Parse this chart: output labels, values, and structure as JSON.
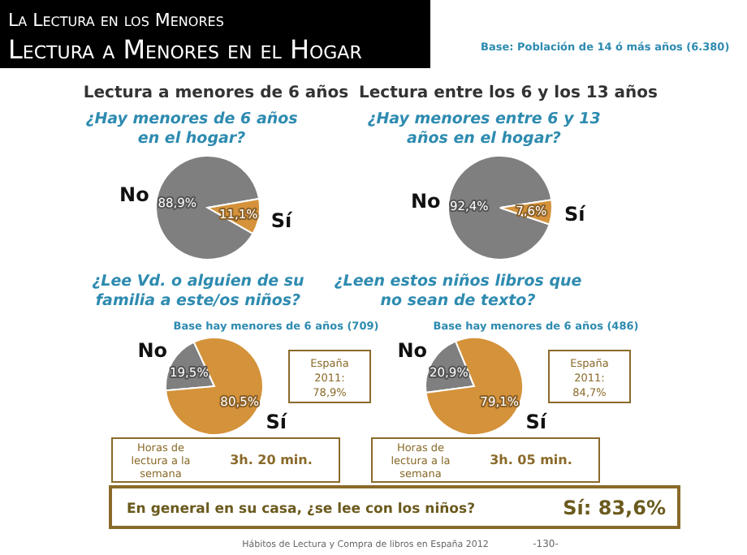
{
  "chart_data": [
    {
      "type": "other",
      "title": "La Lectura en los Menores",
      "subtitle": "Lectura a Menores en el Hogar",
      "annotations": [
        "Base:  Población de 14 ó más años (6.380)"
      ]
    },
    {
      "type": "pie",
      "subtitle": "Lectura a menores de 6 años",
      "title": "¿Hay menores de 6 años en el hogar?",
      "categories": [
        "No",
        "Sí"
      ],
      "values": [
        88.9,
        11.1
      ],
      "colors": [
        "#7f7f7f",
        "#d4923a"
      ],
      "value_labels": [
        "88,9%",
        "11,1%"
      ]
    },
    {
      "type": "pie",
      "title": "¿Lee Vd. o alguien de su familia a este/os niños?",
      "categories": [
        "No",
        "Sí"
      ],
      "values": [
        19.5,
        80.5
      ],
      "colors": [
        "#7f7f7f",
        "#d4923a"
      ],
      "value_labels": [
        "19,5%",
        "80,5%"
      ],
      "annotations": [
        "Base hay menores de 6 años (709)",
        "España 2011: 78,9%",
        "Horas de lectura a la semana",
        "3h.  20 min."
      ]
    },
    {
      "type": "pie",
      "subtitle": "Lectura entre los 6 y los 13 años",
      "title": "¿Hay menores entre  6  y 13 años en el hogar?",
      "categories": [
        "No",
        "Sí"
      ],
      "values": [
        92.4,
        7.6
      ],
      "colors": [
        "#7f7f7f",
        "#d4923a"
      ],
      "value_labels": [
        "92,4%",
        "7,6%"
      ]
    },
    {
      "type": "pie",
      "title": "¿Leen estos niños libros que no sean de texto?",
      "categories": [
        "No",
        "Sí"
      ],
      "values": [
        20.9,
        79.1
      ],
      "colors": [
        "#7f7f7f",
        "#d4923a"
      ],
      "value_labels": [
        "20,9%",
        "79,1%"
      ],
      "annotations": [
        "Base hay menores de 6 años (486)",
        "España 2011: 84,7%",
        "Horas de lectura a la semana",
        "3h.  05 min."
      ]
    },
    {
      "type": "other",
      "title": "En general en su casa, ¿se lee con los niños?",
      "annotations": [
        "Sí: 83,6%",
        "Hábitos de Lectura y Compra de libros en España 2012",
        "-130-"
      ]
    }
  ]
}
